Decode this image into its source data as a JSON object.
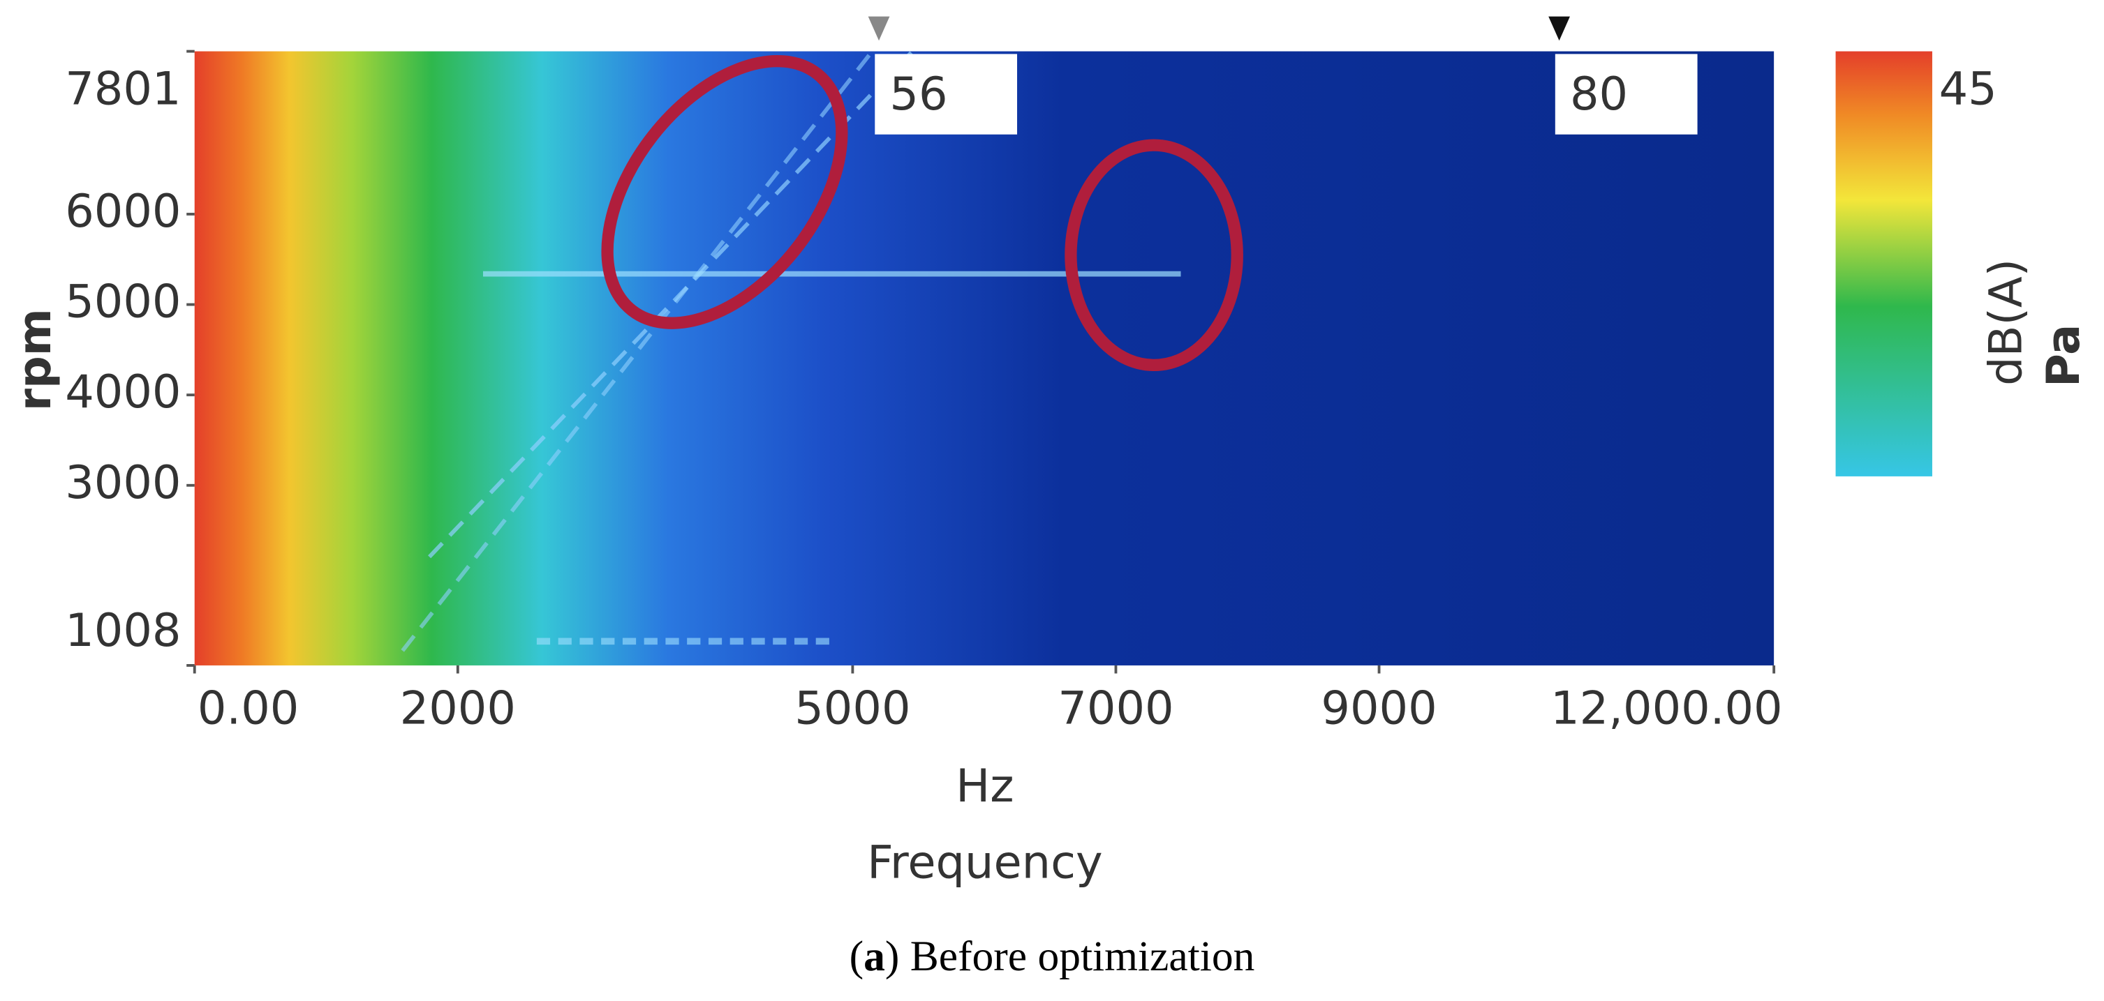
{
  "chart_data": {
    "type": "heatmap",
    "x_label": "Hz",
    "x_title": "Frequency",
    "y_label": "rpm",
    "xlim": [
      0,
      12000
    ],
    "xticks": [
      {
        "value": 0,
        "label": "0.00"
      },
      2000,
      5000,
      7000,
      9000,
      {
        "value": 12000,
        "label": "12,000.00"
      }
    ],
    "ylim": [
      1008,
      7801
    ],
    "yticks": [
      7801,
      6000,
      5000,
      4000,
      3000,
      1008
    ],
    "cursors": [
      56,
      80
    ],
    "colorbar": {
      "max_label": "45",
      "unit": "dB(A)",
      "quantity": "Pa"
    },
    "caption": [
      "(",
      "a",
      ") Before optimization"
    ]
  }
}
